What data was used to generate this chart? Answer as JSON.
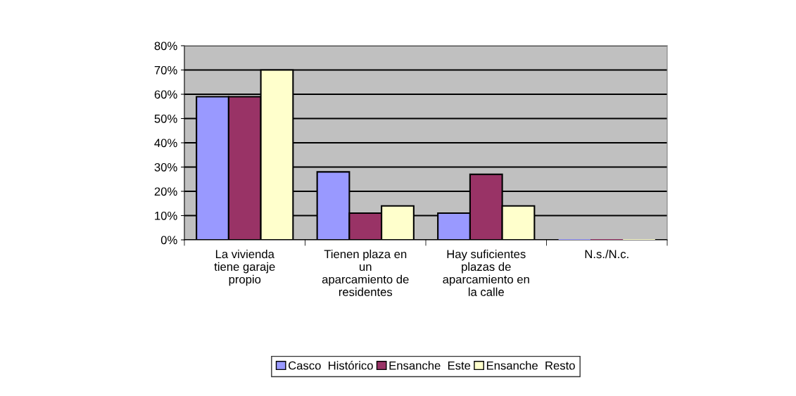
{
  "chart_data": {
    "type": "bar",
    "categories": [
      "La vivienda\ntiene garaje\npropio",
      "Tienen plaza en\nun\naparcamiento de\nresidentes",
      "Hay suficientes\nplazas de\naparcamiento en\nla calle",
      "N.s./N.c."
    ],
    "series": [
      {
        "name": "Casco  Histórico",
        "color": "#9999ff",
        "values": [
          59,
          28,
          11,
          0
        ]
      },
      {
        "name": "Ensanche  Este",
        "color": "#993366",
        "values": [
          59,
          11,
          27,
          0
        ]
      },
      {
        "name": "Ensanche  Resto",
        "color": "#ffffcc",
        "values": [
          70,
          14,
          14,
          0
        ]
      }
    ],
    "ylim": [
      0,
      80
    ],
    "yticks": [
      {
        "value": 0,
        "label": "0%"
      },
      {
        "value": 10,
        "label": "10%"
      },
      {
        "value": 20,
        "label": "20%"
      },
      {
        "value": 30,
        "label": "30%"
      },
      {
        "value": 40,
        "label": "40%"
      },
      {
        "value": 50,
        "label": "50%"
      },
      {
        "value": 60,
        "label": "60%"
      },
      {
        "value": 70,
        "label": "70%"
      },
      {
        "value": 80,
        "label": "80%"
      }
    ],
    "grid": "y",
    "legend": "bottom"
  }
}
